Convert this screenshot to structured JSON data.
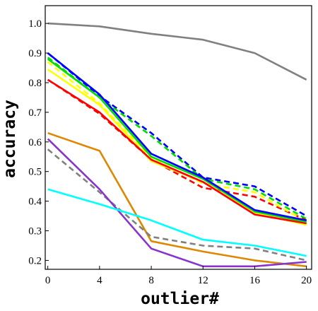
{
  "chart_data": {
    "type": "line",
    "xlabel": "outlier#",
    "ylabel": "accuracy",
    "x": [
      0,
      4,
      8,
      12,
      16,
      20
    ],
    "xlim": [
      -0.2,
      20.4
    ],
    "ylim": [
      0.17,
      1.06
    ],
    "xticks": [
      "0",
      "4",
      "8",
      "12",
      "16",
      "20"
    ],
    "yticks": [
      "0.2",
      "0.3",
      "0.4",
      "0.5",
      "0.6",
      "0.7",
      "0.8",
      "0.9",
      "1.0"
    ],
    "grid": false,
    "series": [
      {
        "color": "#808080",
        "dash": "solid",
        "values": [
          1.0,
          0.99,
          0.965,
          0.945,
          0.9,
          0.81
        ]
      },
      {
        "color": "#0000ff",
        "dash": "dashed",
        "values": [
          0.9,
          0.755,
          0.63,
          0.48,
          0.45,
          0.35
        ]
      },
      {
        "color": "#00dd00",
        "dash": "dashed",
        "values": [
          0.885,
          0.75,
          0.62,
          0.475,
          0.44,
          0.34
        ]
      },
      {
        "color": "#ff0000",
        "dash": "dashed",
        "values": [
          0.81,
          0.695,
          0.54,
          0.445,
          0.415,
          0.335
        ]
      },
      {
        "color": "#ffff00",
        "dash": "dashed",
        "values": [
          0.87,
          0.73,
          0.545,
          0.46,
          0.43,
          0.33
        ]
      },
      {
        "color": "#ffff00",
        "dash": "solid",
        "values": [
          0.845,
          0.725,
          0.535,
          0.465,
          0.36,
          0.32
        ]
      },
      {
        "color": "#ff0000",
        "dash": "solid",
        "values": [
          0.81,
          0.7,
          0.54,
          0.465,
          0.355,
          0.325
        ]
      },
      {
        "color": "#00dd00",
        "dash": "solid",
        "values": [
          0.88,
          0.75,
          0.55,
          0.475,
          0.365,
          0.33
        ]
      },
      {
        "color": "#0000ff",
        "dash": "solid",
        "values": [
          0.9,
          0.76,
          0.56,
          0.48,
          0.37,
          0.335
        ]
      },
      {
        "color": "#dd8800",
        "dash": "solid",
        "values": [
          0.63,
          0.57,
          0.265,
          0.23,
          0.2,
          0.18
        ]
      },
      {
        "color": "#808080",
        "dash": "dashed",
        "values": [
          0.575,
          0.43,
          0.28,
          0.25,
          0.24,
          0.2
        ]
      },
      {
        "color": "#8833cc",
        "dash": "solid",
        "values": [
          0.61,
          0.44,
          0.24,
          0.18,
          0.18,
          0.195
        ]
      },
      {
        "color": "#00ffff",
        "dash": "solid",
        "values": [
          0.44,
          0.39,
          0.335,
          0.27,
          0.25,
          0.215
        ]
      }
    ]
  }
}
